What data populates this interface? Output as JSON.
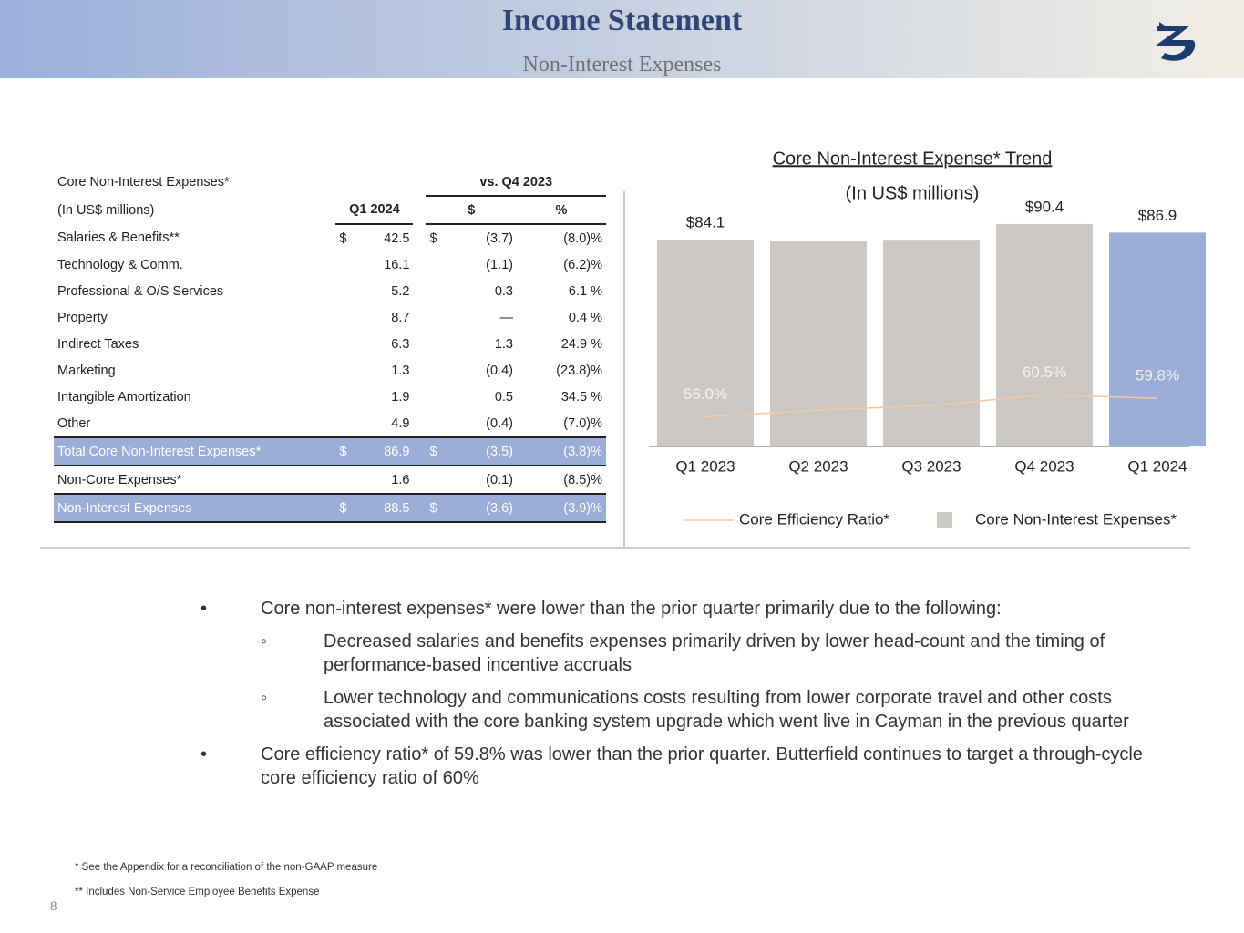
{
  "header": {
    "title": "Income Statement",
    "subtitle": "Non-Interest Expenses"
  },
  "table": {
    "header_rows": [
      [
        "Core Non-Interest Expenses*",
        "vs. Q4 2023"
      ],
      [
        "(In US$ millions)",
        "Q1 2024",
        "$",
        "%"
      ]
    ],
    "rows": [
      [
        "Salaries & Benefits**",
        "$",
        "42.5",
        "$",
        "(3.7)",
        "(8.0)%"
      ],
      [
        "Technology & Comm.",
        null,
        "16.1",
        null,
        "(1.1)",
        "(6.2)%"
      ],
      [
        "Professional & O/S Services",
        null,
        "5.2",
        null,
        "0.3",
        "6.1 %"
      ],
      [
        "Property",
        null,
        "8.7",
        null,
        "—",
        "0.4 %"
      ],
      [
        "Indirect Taxes",
        null,
        "6.3",
        null,
        "1.3",
        "24.9 %"
      ],
      [
        "Marketing",
        null,
        "1.3",
        null,
        "(0.4)",
        "(23.8)%"
      ],
      [
        "Intangible Amortization",
        null,
        "1.9",
        null,
        "0.5",
        "34.5 %"
      ],
      [
        "Other",
        null,
        "4.9",
        null,
        "(0.4)",
        "(7.0)%"
      ],
      [
        "Total Core Non-Interest Expenses*",
        "$",
        "86.9",
        "$",
        "(3.5)",
        "(3.8)%"
      ],
      [
        "Non-Core Expenses*",
        null,
        "1.6",
        null,
        "(0.1)",
        "(8.5)%"
      ],
      [
        "Non-Interest Expenses",
        "$",
        "88.5",
        "$",
        "(3.6)",
        "(3.9)%"
      ]
    ]
  },
  "chart_data": {
    "type": "bar",
    "title": "Core Non-Interest Expense* Trend",
    "subtitle": "(In US$ millions)",
    "categories": [
      "Q1 2023",
      "Q2 2023",
      "Q3 2023",
      "Q4 2023",
      "Q1 2024"
    ],
    "series": [
      {
        "name": "Core Non-Interest Expenses*",
        "type": "bar",
        "color": "#cbc8c3",
        "colors": [
          "#cbc8c3",
          "#cbc8c3",
          "#cbc8c3",
          "#cbc8c3",
          "#9aaed8"
        ],
        "values": [
          84.1,
          83.3,
          84.0,
          90.4,
          86.9
        ],
        "value_labels": [
          "$84.1",
          null,
          null,
          "$90.4",
          "$86.9"
        ]
      },
      {
        "name": "Core Efficiency Ratio*",
        "type": "line",
        "axis": "y2",
        "color": "#f5c8a3",
        "values": [
          56.0,
          57.4,
          58.3,
          60.5,
          59.8
        ],
        "value_labels": [
          "56.0%",
          null,
          null,
          "60.5%",
          "59.8%"
        ]
      }
    ],
    "ylim": [
      0,
      100
    ],
    "y2lim": [
      50,
      100
    ]
  },
  "bullets": [
    {
      "level": 1,
      "text": "Core non-interest expenses* were lower than the prior quarter primarily due to the following:"
    },
    {
      "level": 2,
      "text": "Decreased salaries and benefits expenses primarily driven by lower head-count and the timing of performance-based incentive accruals"
    },
    {
      "level": 2,
      "text": "Lower technology and communications costs resulting from lower corporate travel and other costs associated with the core banking system upgrade which went live in Cayman in the previous quarter"
    },
    {
      "level": 1,
      "text": "Core efficiency ratio* of 59.8% was lower than the prior quarter. Butterfield continues to target a through-cycle core efficiency ratio of 60%"
    }
  ],
  "footnotes": [
    "* See the Appendix for a reconciliation of the non-GAAP measure",
    "** Includes Non-Service Employee Benefits Expense"
  ],
  "page_number": "8"
}
